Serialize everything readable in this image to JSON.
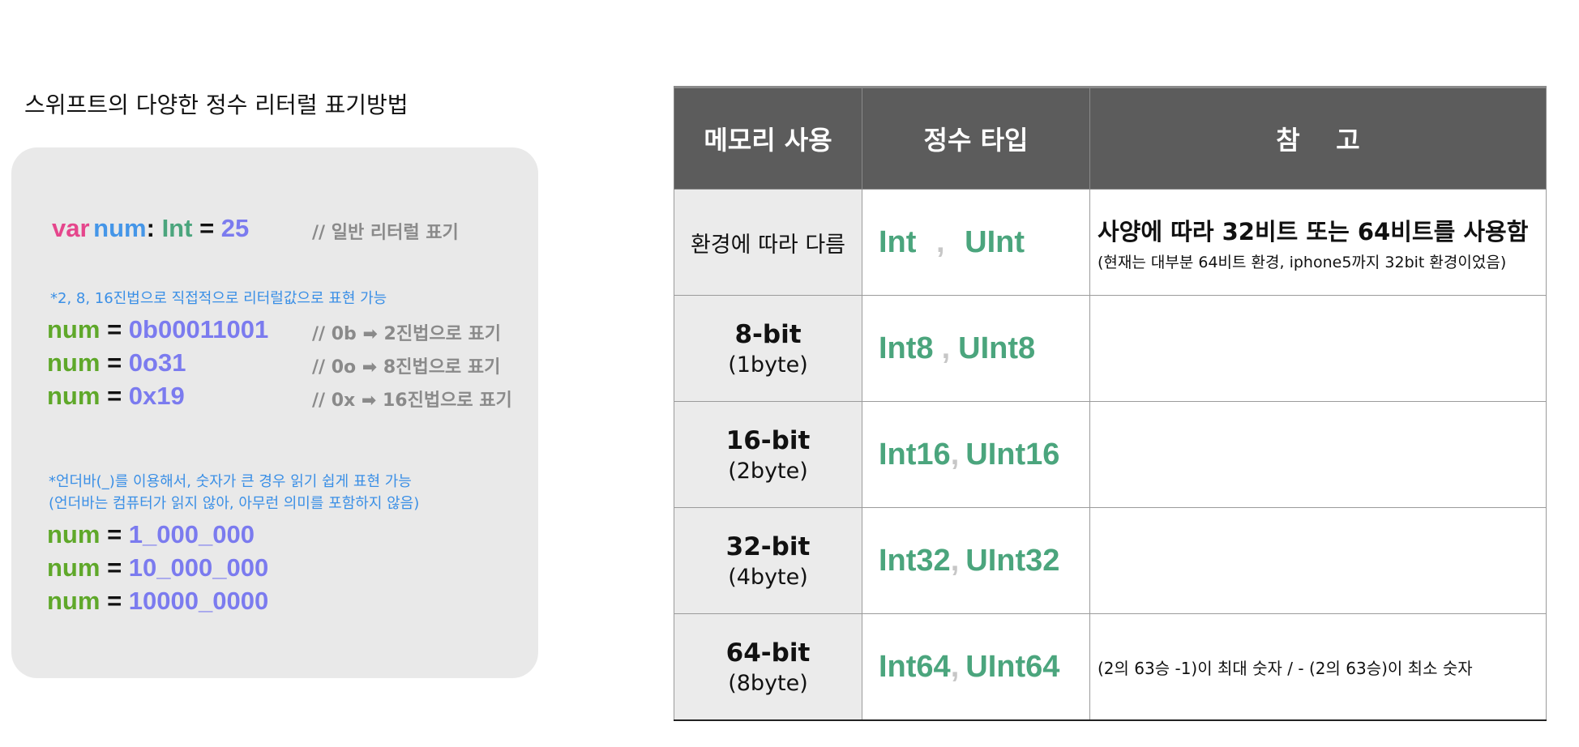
{
  "left_title": "스위프트의 다양한 정수 리터럴 표기방법",
  "code": {
    "line1": {
      "kw": "var",
      "ident": "num",
      "colon": ":",
      "type": "Int",
      "eq": "=",
      "value": "25",
      "comment": "// 일반 리터럴 표기"
    },
    "note1": "*2, 8, 16진법으로 직접적으로 리터럴값으로 표현 가능",
    "bin": {
      "ident": "num",
      "eq": "=",
      "value": "0b00011001",
      "comment": "// 0b ➡ 2진법으로 표기"
    },
    "oct": {
      "ident": "num",
      "eq": "=",
      "value": "0o31",
      "comment": "// 0o ➡ 8진법으로 표기"
    },
    "hex": {
      "ident": "num",
      "eq": "=",
      "value": "0x19",
      "comment": "// 0x ➡ 16진법으로 표기"
    },
    "note2_line1": "*언더바(_)를 이용해서, 숫자가 큰 경우 읽기 쉽게 표현 가능",
    "note2_line2": "(언더바는 컴퓨터가 읽지 않아, 아무런 의미를 포함하지 않음)",
    "u1": {
      "ident": "num",
      "eq": "=",
      "value": "1_000_000"
    },
    "u2": {
      "ident": "num",
      "eq": "=",
      "value": "10_000_000"
    },
    "u3": {
      "ident": "num",
      "eq": "=",
      "value": "10000_0000"
    }
  },
  "table": {
    "headers": [
      "메모리 사용",
      "정수 타입",
      "참    고"
    ],
    "rows": [
      {
        "mem": "환경에 따라 다름",
        "type_a": "Int",
        "comma": ",",
        "type_b": "UInt",
        "ref_main": "사양에 따라 32비트 또는 64비트를 사용함",
        "ref_sub": "(현재는 대부분 64비트 환경, iphone5까지 32bit 환경이었음)"
      },
      {
        "bits": "8-bit",
        "bytes": "(1byte)",
        "type_a": "Int8",
        "comma": ",",
        "type_b": "UInt8",
        "ref": ""
      },
      {
        "bits": "16-bit",
        "bytes": "(2byte)",
        "type_a": "Int16",
        "comma": ",",
        "type_b": "UInt16",
        "ref": ""
      },
      {
        "bits": "32-bit",
        "bytes": "(4byte)",
        "type_a": "Int32",
        "comma": ",",
        "type_b": "UInt32",
        "ref": ""
      },
      {
        "bits": "64-bit",
        "bytes": "(8byte)",
        "type_a": "Int64",
        "comma": ",",
        "type_b": "UInt64",
        "ref": "(2의 63승 -1)이 최대 숫자 / - (2의 63승)이 최소 숫자"
      }
    ]
  },
  "colors": {
    "keyword": "#e5468c",
    "identifier": "#4596e8",
    "type": "#4ba57d",
    "identifier_green": "#5fa82a",
    "literal": "#7b7bef",
    "comment": "#8a8a8a",
    "note": "#3a8fe6",
    "header_bg": "#5c5c5c",
    "mem_cell_bg": "#ebebeb",
    "panel_bg": "#e9e9e9"
  }
}
